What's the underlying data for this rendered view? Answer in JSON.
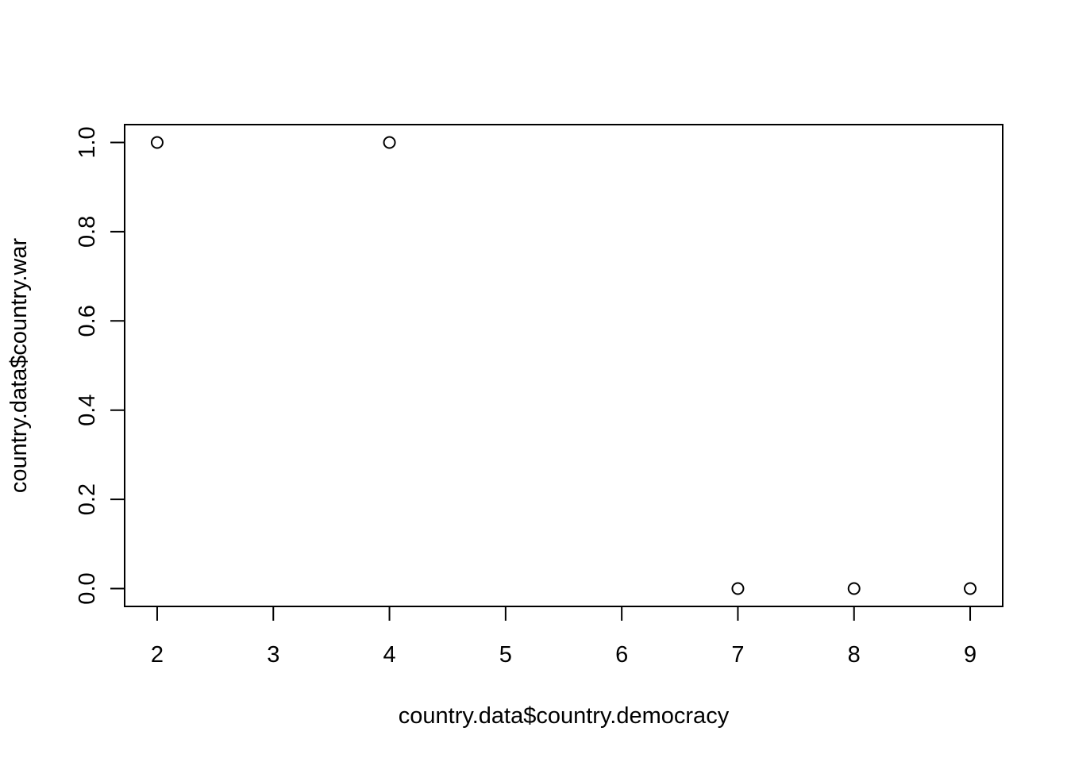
{
  "chart_data": {
    "type": "scatter",
    "title": "",
    "xlabel": "country.data$country.democracy",
    "ylabel": "country.data$country.war",
    "xlim": [
      1.72,
      9.28
    ],
    "ylim": [
      -0.04,
      1.04
    ],
    "x_ticks": [
      2,
      3,
      4,
      5,
      6,
      7,
      8,
      9
    ],
    "x_tick_labels": [
      "2",
      "3",
      "4",
      "5",
      "6",
      "7",
      "8",
      "9"
    ],
    "y_ticks": [
      0.0,
      0.2,
      0.4,
      0.6,
      0.8,
      1.0
    ],
    "y_tick_labels": [
      "0.0",
      "0.2",
      "0.4",
      "0.6",
      "0.8",
      "1.0"
    ],
    "points": [
      {
        "x": 2,
        "y": 1
      },
      {
        "x": 4,
        "y": 1
      },
      {
        "x": 7,
        "y": 0
      },
      {
        "x": 8,
        "y": 0
      },
      {
        "x": 9,
        "y": 0
      }
    ],
    "marker": "open-circle",
    "grid": false,
    "legend": "none",
    "colors": {
      "points": "#000000",
      "axes": "#000000",
      "background": "#ffffff"
    }
  }
}
